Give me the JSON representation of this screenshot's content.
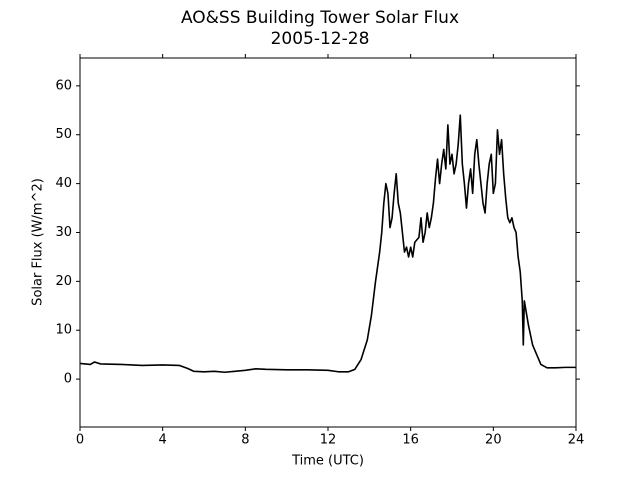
{
  "chart_data": {
    "type": "line",
    "title": "AO&SS Building Tower Solar Flux",
    "subtitle": "2005-12-28",
    "x_label": "Time (UTC)",
    "y_label": "Solar Flux (W/m^2)",
    "xlim": [
      0,
      24
    ],
    "ylim": [
      -9.8,
      65.7
    ],
    "xticks": [
      0,
      4,
      8,
      12,
      16,
      20,
      24
    ],
    "yticks": [
      0,
      10,
      20,
      30,
      40,
      50,
      60
    ],
    "grid": false,
    "series": [
      {
        "color": "#000000",
        "x": [
          0,
          0.5,
          0.7,
          1,
          2,
          3,
          4,
          4.8,
          5.2,
          5.5,
          6,
          6.5,
          7,
          7.5,
          8,
          8.5,
          9,
          10,
          11,
          12,
          12.5,
          13,
          13.3,
          13.6,
          13.9,
          14.1,
          14.3,
          14.5,
          14.6,
          14.7,
          14.8,
          14.9,
          15.0,
          15.1,
          15.2,
          15.3,
          15.4,
          15.5,
          15.6,
          15.7,
          15.8,
          15.9,
          16.0,
          16.1,
          16.2,
          16.4,
          16.5,
          16.6,
          16.7,
          16.8,
          16.9,
          17.0,
          17.1,
          17.2,
          17.3,
          17.4,
          17.5,
          17.6,
          17.7,
          17.8,
          17.9,
          18.0,
          18.1,
          18.2,
          18.3,
          18.4,
          18.5,
          18.6,
          18.7,
          18.8,
          18.9,
          19.0,
          19.1,
          19.2,
          19.3,
          19.4,
          19.5,
          19.6,
          19.7,
          19.8,
          19.9,
          20.0,
          20.1,
          20.2,
          20.3,
          20.4,
          20.5,
          20.6,
          20.7,
          20.8,
          20.9,
          21.0,
          21.1,
          21.2,
          21.3,
          21.4,
          21.45,
          21.5,
          21.7,
          21.9,
          22.1,
          22.3,
          22.6,
          23,
          23.5,
          24
        ],
        "values": [
          3.2,
          3.0,
          3.5,
          3.1,
          3.0,
          2.8,
          2.9,
          2.8,
          2.2,
          1.6,
          1.5,
          1.6,
          1.4,
          1.6,
          1.8,
          2.1,
          2.0,
          1.9,
          1.9,
          1.8,
          1.5,
          1.5,
          2.0,
          4,
          8,
          13,
          20,
          26,
          30,
          36,
          40,
          38,
          31,
          33,
          38,
          42,
          36,
          34,
          30,
          26,
          27,
          25,
          27,
          25,
          28,
          29,
          33,
          28,
          30,
          34,
          31,
          33,
          36,
          41,
          45,
          40,
          44,
          47,
          43,
          52,
          44,
          46,
          42,
          44,
          48,
          54,
          44,
          40,
          35,
          40,
          43,
          38,
          46,
          49,
          44,
          40,
          36,
          34,
          40,
          44,
          46,
          38,
          40,
          51,
          46,
          49,
          42,
          37,
          33,
          32,
          33,
          31,
          30,
          25,
          22,
          16,
          7,
          16,
          11,
          7,
          5,
          3,
          2.3,
          2.3,
          2.4,
          2.4
        ]
      }
    ]
  }
}
